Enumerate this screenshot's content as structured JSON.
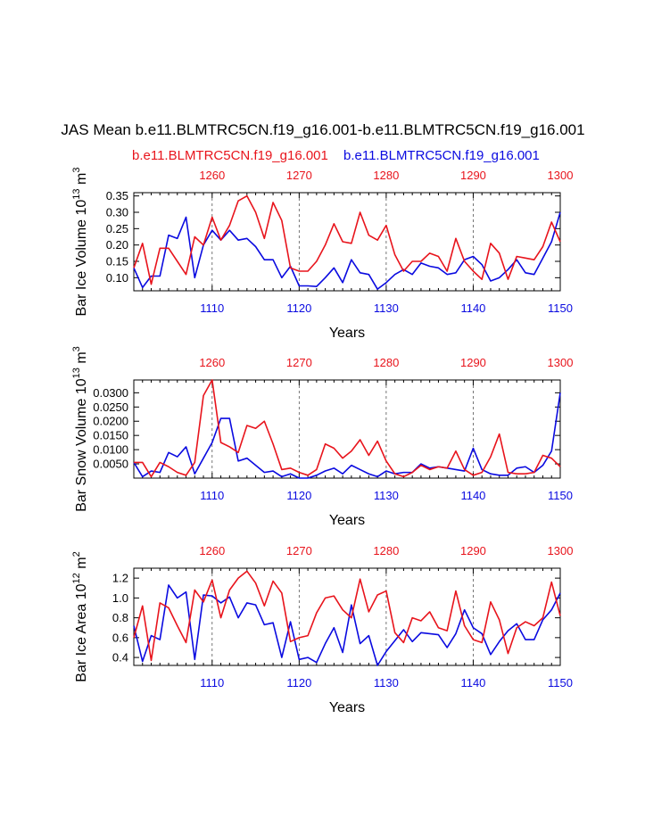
{
  "title": "JAS Mean b.e11.BLMTRC5CN.f19_g16.001-b.e11.BLMTRC5CN.f19_g16.001",
  "legend": {
    "series_a": "b.e11.BLMTRC5CN.f19_g16.001",
    "series_b": "b.e11.BLMTRC5CN.f19_g16.001"
  },
  "colors": {
    "series_a": "#e8141c",
    "series_b": "#0a0ae0"
  },
  "chart_data": [
    {
      "type": "line",
      "ylabel": "Bar Ice Volume 10",
      "ylabel_exp": "13",
      "ylabel_unit": " m",
      "ylabel_unit_exp": "3",
      "xlabel": "Years",
      "xlim_bottom": [
        1101,
        1150
      ],
      "xlim_top": [
        1251,
        1300
      ],
      "xticks_bottom": [
        "1110",
        "1120",
        "1130",
        "1140",
        "1150"
      ],
      "xticks_top": [
        "1260",
        "1270",
        "1280",
        "1290",
        "1300"
      ],
      "ylim": [
        0.06,
        0.36
      ],
      "yticks": [
        "0.10",
        "0.15",
        "0.20",
        "0.25",
        "0.30",
        "0.35"
      ],
      "ytick_values": [
        0.1,
        0.15,
        0.2,
        0.25,
        0.3,
        0.35
      ],
      "grid": "dashed vertical at top ticks",
      "series_a": {
        "name": "b.e11.BLMTRC5CN.f19_g16.001",
        "axis": "top",
        "values": [
          0.13,
          0.205,
          0.08,
          0.19,
          0.19,
          0.15,
          0.11,
          0.225,
          0.2,
          0.285,
          0.215,
          0.26,
          0.335,
          0.35,
          0.3,
          0.22,
          0.33,
          0.275,
          0.13,
          0.12,
          0.12,
          0.15,
          0.2,
          0.265,
          0.21,
          0.205,
          0.3,
          0.23,
          0.215,
          0.26,
          0.17,
          0.12,
          0.15,
          0.15,
          0.175,
          0.165,
          0.12,
          0.22,
          0.15,
          0.12,
          0.095,
          0.205,
          0.175,
          0.095,
          0.165,
          0.16,
          0.155,
          0.195,
          0.27,
          0.21
        ]
      },
      "series_b": {
        "name": "b.e11.BLMTRC5CN.f19_g16.001",
        "axis": "bottom",
        "values": [
          0.13,
          0.07,
          0.105,
          0.105,
          0.23,
          0.22,
          0.285,
          0.1,
          0.2,
          0.245,
          0.215,
          0.245,
          0.215,
          0.22,
          0.195,
          0.155,
          0.155,
          0.1,
          0.135,
          0.075,
          0.075,
          0.073,
          0.1,
          0.13,
          0.085,
          0.155,
          0.115,
          0.11,
          0.065,
          0.085,
          0.11,
          0.125,
          0.11,
          0.145,
          0.135,
          0.13,
          0.11,
          0.115,
          0.155,
          0.165,
          0.14,
          0.09,
          0.1,
          0.125,
          0.155,
          0.115,
          0.11,
          0.16,
          0.21,
          0.3
        ]
      }
    },
    {
      "type": "line",
      "ylabel": "Bar Snow Volume 10",
      "ylabel_exp": "13",
      "ylabel_unit": " m",
      "ylabel_unit_exp": "3",
      "xlabel": "Years",
      "xlim_bottom": [
        1101,
        1150
      ],
      "xlim_top": [
        1251,
        1300
      ],
      "xticks_bottom": [
        "1110",
        "1120",
        "1130",
        "1140",
        "1150"
      ],
      "xticks_top": [
        "1260",
        "1270",
        "1280",
        "1290",
        "1300"
      ],
      "ylim": [
        0.0,
        0.0345
      ],
      "yticks": [
        "0.0050",
        "0.0100",
        "0.0150",
        "0.0200",
        "0.0250",
        "0.0300"
      ],
      "ytick_values": [
        0.005,
        0.01,
        0.015,
        0.02,
        0.025,
        0.03
      ],
      "grid": "dashed vertical at top ticks",
      "series_a": {
        "name": "b.e11.BLMTRC5CN.f19_g16.001",
        "axis": "top",
        "values": [
          0.0055,
          0.0055,
          0.0005,
          0.0055,
          0.004,
          0.002,
          0.001,
          0.0055,
          0.029,
          0.0345,
          0.0125,
          0.011,
          0.009,
          0.0185,
          0.0175,
          0.02,
          0.012,
          0.003,
          0.0035,
          0.002,
          0.001,
          0.003,
          0.012,
          0.0105,
          0.007,
          0.0095,
          0.0135,
          0.008,
          0.013,
          0.006,
          0.0015,
          0.0005,
          0.002,
          0.0045,
          0.003,
          0.004,
          0.0035,
          0.0095,
          0.003,
          0.001,
          0.002,
          0.0075,
          0.0155,
          0.002,
          0.0015,
          0.0015,
          0.002,
          0.008,
          0.007,
          0.004
        ]
      },
      "series_b": {
        "name": "b.e11.BLMTRC5CN.f19_g16.001",
        "axis": "bottom",
        "values": [
          0.0055,
          0.0005,
          0.0025,
          0.002,
          0.009,
          0.0075,
          0.011,
          0.0015,
          0.007,
          0.0125,
          0.021,
          0.021,
          0.006,
          0.007,
          0.0045,
          0.002,
          0.0025,
          0.0005,
          0.0015,
          0.0,
          0.0,
          0.001,
          0.0025,
          0.0035,
          0.0015,
          0.0045,
          0.003,
          0.0015,
          0.0005,
          0.0025,
          0.0015,
          0.002,
          0.002,
          0.005,
          0.0035,
          0.004,
          0.0035,
          0.003,
          0.0025,
          0.0105,
          0.003,
          0.0015,
          0.001,
          0.001,
          0.0035,
          0.004,
          0.002,
          0.0045,
          0.0095,
          0.03
        ]
      }
    },
    {
      "type": "line",
      "ylabel": "Bar Ice Area 10",
      "ylabel_exp": "12",
      "ylabel_unit": " m",
      "ylabel_unit_exp": "2",
      "xlabel": "Years",
      "xlim_bottom": [
        1101,
        1150
      ],
      "xlim_top": [
        1251,
        1300
      ],
      "xticks_bottom": [
        "1110",
        "1120",
        "1130",
        "1140",
        "1150"
      ],
      "xticks_top": [
        "1260",
        "1270",
        "1280",
        "1290",
        "1300"
      ],
      "ylim": [
        0.32,
        1.3
      ],
      "yticks": [
        "0.4",
        "0.6",
        "0.8",
        "1.0",
        "1.2"
      ],
      "ytick_values": [
        0.4,
        0.6,
        0.8,
        1.0,
        1.2
      ],
      "grid": "dashed vertical at top ticks",
      "series_a": {
        "name": "b.e11.BLMTRC5CN.f19_g16.001",
        "axis": "top",
        "values": [
          0.6,
          0.92,
          0.37,
          0.95,
          0.9,
          0.72,
          0.55,
          1.08,
          0.96,
          1.18,
          0.8,
          1.08,
          1.2,
          1.27,
          1.15,
          0.92,
          1.17,
          1.05,
          0.56,
          0.6,
          0.62,
          0.85,
          1.0,
          1.02,
          0.88,
          0.8,
          1.19,
          0.86,
          1.03,
          1.07,
          0.65,
          0.55,
          0.8,
          0.77,
          0.86,
          0.7,
          0.67,
          1.07,
          0.72,
          0.58,
          0.55,
          0.96,
          0.78,
          0.44,
          0.7,
          0.76,
          0.72,
          0.8,
          1.16,
          0.82
        ]
      },
      "series_b": {
        "name": "b.e11.BLMTRC5CN.f19_g16.001",
        "axis": "bottom",
        "values": [
          0.72,
          0.36,
          0.62,
          0.58,
          1.13,
          1.0,
          1.06,
          0.38,
          1.03,
          1.02,
          0.95,
          1.01,
          0.8,
          0.95,
          0.93,
          0.73,
          0.75,
          0.4,
          0.76,
          0.38,
          0.4,
          0.35,
          0.54,
          0.7,
          0.45,
          0.93,
          0.54,
          0.62,
          0.32,
          0.46,
          0.57,
          0.68,
          0.56,
          0.65,
          0.64,
          0.63,
          0.5,
          0.64,
          0.88,
          0.7,
          0.64,
          0.43,
          0.56,
          0.67,
          0.74,
          0.58,
          0.58,
          0.78,
          0.88,
          1.05
        ]
      }
    }
  ]
}
